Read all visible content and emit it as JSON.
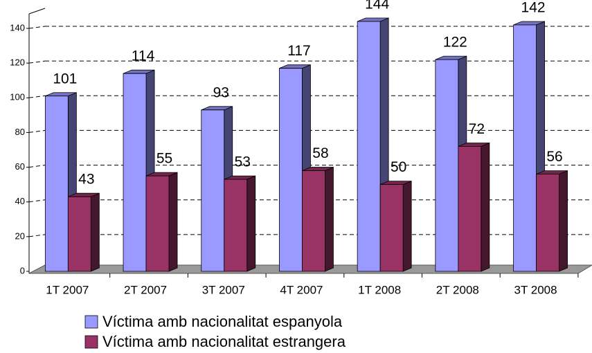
{
  "chart_data": {
    "type": "bar3d",
    "categories": [
      "1T 2007",
      "2T 2007",
      "3T 2007",
      "4T 2007",
      "1T 2008",
      "2T 2008",
      "3T 2008"
    ],
    "series": [
      {
        "name": "Víctima amb nacionalitat espanyola",
        "color": "#9999ff",
        "values": [
          101,
          114,
          93,
          117,
          144,
          122,
          142
        ]
      },
      {
        "name": "Víctima amb nacionalitat estrangera",
        "color": "#993366",
        "values": [
          43,
          55,
          53,
          58,
          50,
          72,
          56
        ]
      }
    ],
    "ylim": [
      0,
      140
    ],
    "yticks": [
      0,
      20,
      40,
      60,
      80,
      100,
      120,
      140
    ],
    "grid": true,
    "legend": "bottom"
  }
}
